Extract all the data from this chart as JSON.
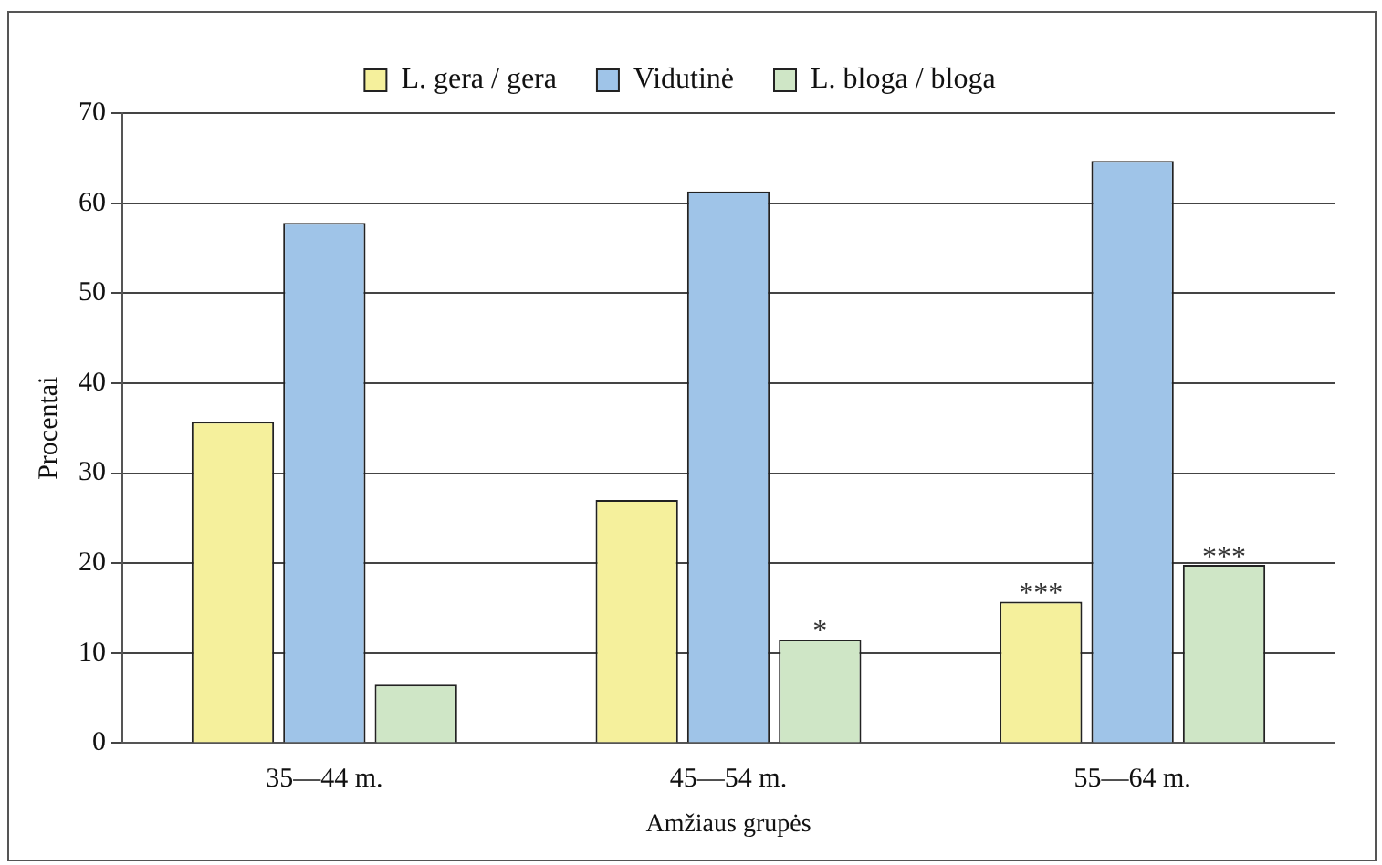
{
  "chart_data": {
    "type": "bar",
    "xlabel": "Amžiaus grupės",
    "ylabel": "Procentai",
    "categories": [
      "35—44 m.",
      "45—54 m.",
      "55—64 m."
    ],
    "series": [
      {
        "name": "L. gera / gera",
        "color": "#f5f09c",
        "values": [
          35.7,
          27.0,
          15.7
        ],
        "value_labels": [
          null,
          null,
          "***"
        ]
      },
      {
        "name": "Vidutinė",
        "color": "#9fc4e8",
        "values": [
          57.8,
          61.3,
          64.7
        ]
      },
      {
        "name": "L. bloga / bloga",
        "color": "#cfe6c6",
        "values": [
          6.5,
          11.5,
          19.8
        ],
        "value_labels": [
          null,
          "*",
          "***"
        ]
      }
    ],
    "ylim": [
      0,
      70
    ],
    "yticks": [
      0,
      10,
      20,
      30,
      40,
      50,
      60,
      70
    ],
    "grid": "y",
    "legend": "top"
  }
}
